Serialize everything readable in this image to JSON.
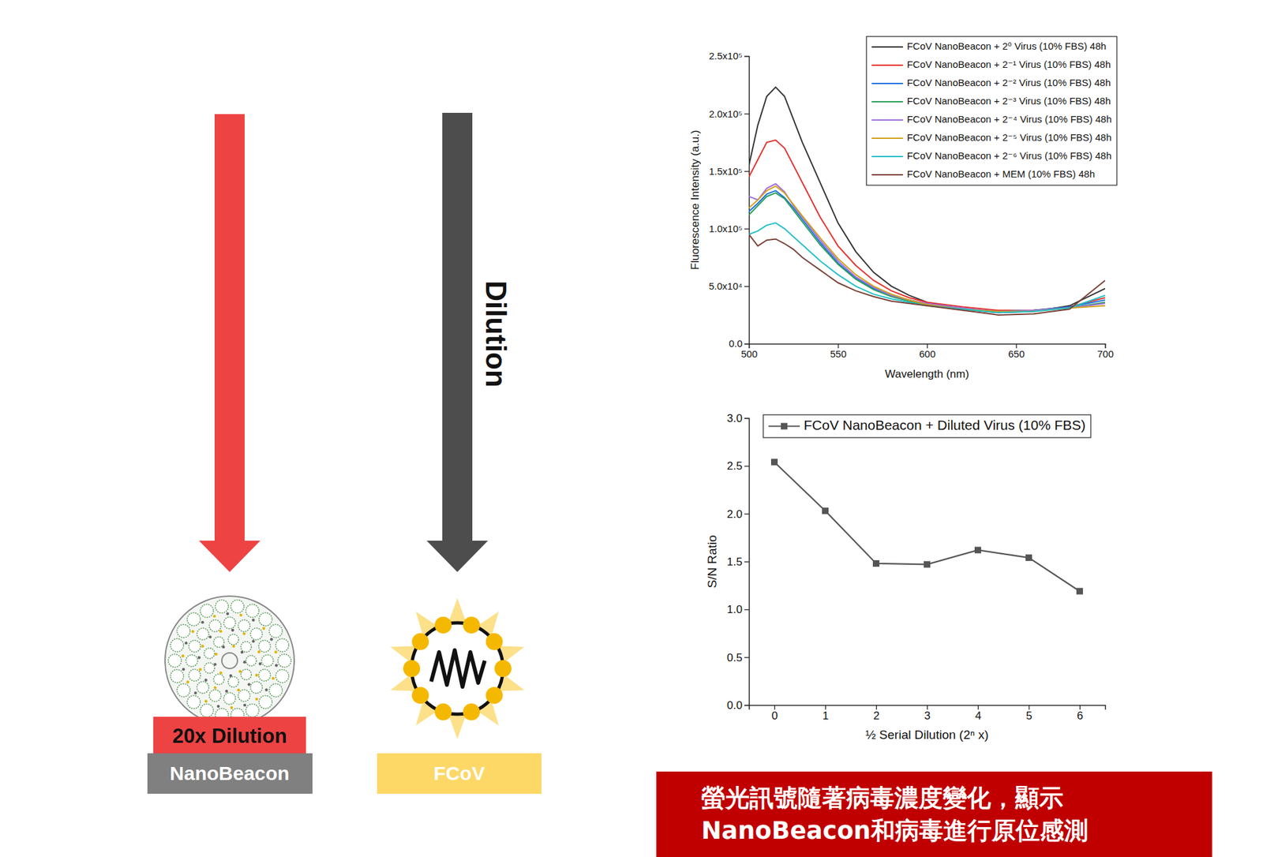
{
  "diagram": {
    "arrow_label": "Dilution",
    "nanobeacon": {
      "dilution": "20x Dilution",
      "label": "NanoBeacon"
    },
    "virus": {
      "label": "FCoV"
    }
  },
  "caption": {
    "lines": [
      "螢光訊號隨著病毒濃度變化，顯示",
      "NanoBeacon和病毒進行原位感測"
    ]
  },
  "chart_data": [
    {
      "type": "line",
      "x_label": "Wavelength (nm)",
      "y_label": "Fluorescence Intensity (a.u.)",
      "x": [
        500,
        505,
        510,
        515,
        520,
        525,
        530,
        540,
        550,
        560,
        570,
        580,
        590,
        600,
        620,
        640,
        660,
        680,
        700
      ],
      "xlim": [
        500,
        700
      ],
      "xticks": [
        500,
        550,
        600,
        650,
        700
      ],
      "ylim": [
        0,
        250000
      ],
      "yticks": [
        {
          "value": 0,
          "label": "0.0"
        },
        {
          "value": 50000,
          "label": "5.0x10⁴"
        },
        {
          "value": 100000,
          "label": "1.0x10⁵"
        },
        {
          "value": 150000,
          "label": "1.5x10⁵"
        },
        {
          "value": 200000,
          "label": "2.0x10⁵"
        },
        {
          "value": 250000,
          "label": "2.5x10⁵"
        }
      ],
      "legend": "top-right",
      "series": [
        {
          "name": "FCoV NanoBeacon + 2⁰ Virus (10% FBS) 48h",
          "color": "#333333",
          "values": [
            155000,
            190000,
            215000,
            223000,
            215000,
            195000,
            175000,
            140000,
            105000,
            80000,
            62000,
            50000,
            42000,
            36000,
            30000,
            27000,
            28000,
            33000,
            48000
          ]
        },
        {
          "name": "FCoV NanoBeacon + 2⁻¹ Virus (10% FBS) 48h",
          "color": "#e8302c",
          "values": [
            145000,
            160000,
            175000,
            177000,
            170000,
            155000,
            140000,
            110000,
            85000,
            68000,
            55000,
            46000,
            40000,
            36000,
            32000,
            29000,
            29000,
            32000,
            40000
          ]
        },
        {
          "name": "FCoV NanoBeacon + 2⁻² Virus (10% FBS) 48h",
          "color": "#1f6fe0",
          "values": [
            115000,
            122000,
            130000,
            133000,
            127000,
            118000,
            108000,
            88000,
            70000,
            57000,
            48000,
            42000,
            38000,
            34000,
            30000,
            28000,
            29000,
            32000,
            38000
          ]
        },
        {
          "name": "FCoV NanoBeacon + 2⁻³ Virus (10% FBS) 48h",
          "color": "#2ca05a",
          "values": [
            112000,
            120000,
            128000,
            131000,
            126000,
            116000,
            106000,
            86000,
            69000,
            56000,
            47000,
            41000,
            37000,
            34000,
            30000,
            28000,
            29000,
            31000,
            36000
          ]
        },
        {
          "name": "FCoV NanoBeacon + 2⁻⁴ Virus (10% FBS) 48h",
          "color": "#a070e0",
          "values": [
            128000,
            125000,
            135000,
            139000,
            132000,
            120000,
            110000,
            90000,
            72000,
            58000,
            49000,
            42000,
            38000,
            35000,
            31000,
            28000,
            29000,
            31000,
            35000
          ]
        },
        {
          "name": "FCoV NanoBeacon + 2⁻⁵ Virus (10% FBS) 48h",
          "color": "#d4a017",
          "values": [
            118000,
            125000,
            133000,
            137000,
            131000,
            121000,
            111000,
            92000,
            74000,
            60000,
            50000,
            43000,
            38000,
            34000,
            30000,
            28000,
            28000,
            31000,
            33000
          ]
        },
        {
          "name": "FCoV NanoBeacon + 2⁻⁶ Virus (10% FBS) 48h",
          "color": "#20c0c8",
          "values": [
            95000,
            98000,
            103000,
            105000,
            100000,
            93000,
            86000,
            72000,
            60000,
            50000,
            43000,
            39000,
            36000,
            33000,
            30000,
            27000,
            28000,
            31000,
            42000
          ]
        },
        {
          "name": "FCoV NanoBeacon + MEM (10% FBS) 48h",
          "color": "#7a4035",
          "values": [
            95000,
            85000,
            90000,
            91000,
            87000,
            82000,
            75000,
            64000,
            53000,
            46000,
            41000,
            37000,
            35000,
            33000,
            29000,
            25000,
            26000,
            30000,
            55000
          ]
        }
      ]
    },
    {
      "type": "line",
      "x_label": "½ Serial Dilution (2ⁿ x)",
      "y_label": "S/N Ratio",
      "x": [
        0,
        1,
        2,
        3,
        4,
        5,
        6
      ],
      "xlim": [
        -0.5,
        6.5
      ],
      "xticks": [
        0,
        1,
        2,
        3,
        4,
        5,
        6
      ],
      "ylim": [
        0,
        3
      ],
      "yticks": [
        {
          "value": 0,
          "label": "0.0"
        },
        0.5,
        {
          "value": 1,
          "label": "1.0"
        },
        1.5,
        {
          "value": 2,
          "label": "2.0"
        },
        2.5,
        {
          "value": 3,
          "label": "3.0"
        }
      ],
      "legend": "top",
      "series": [
        {
          "name": "FCoV NanoBeacon + Diluted Virus (10% FBS)",
          "color": "#555555",
          "marker": "square",
          "line_style": "solid",
          "values": [
            2.54,
            2.03,
            1.48,
            1.47,
            1.62,
            1.54,
            1.19
          ]
        }
      ]
    }
  ]
}
